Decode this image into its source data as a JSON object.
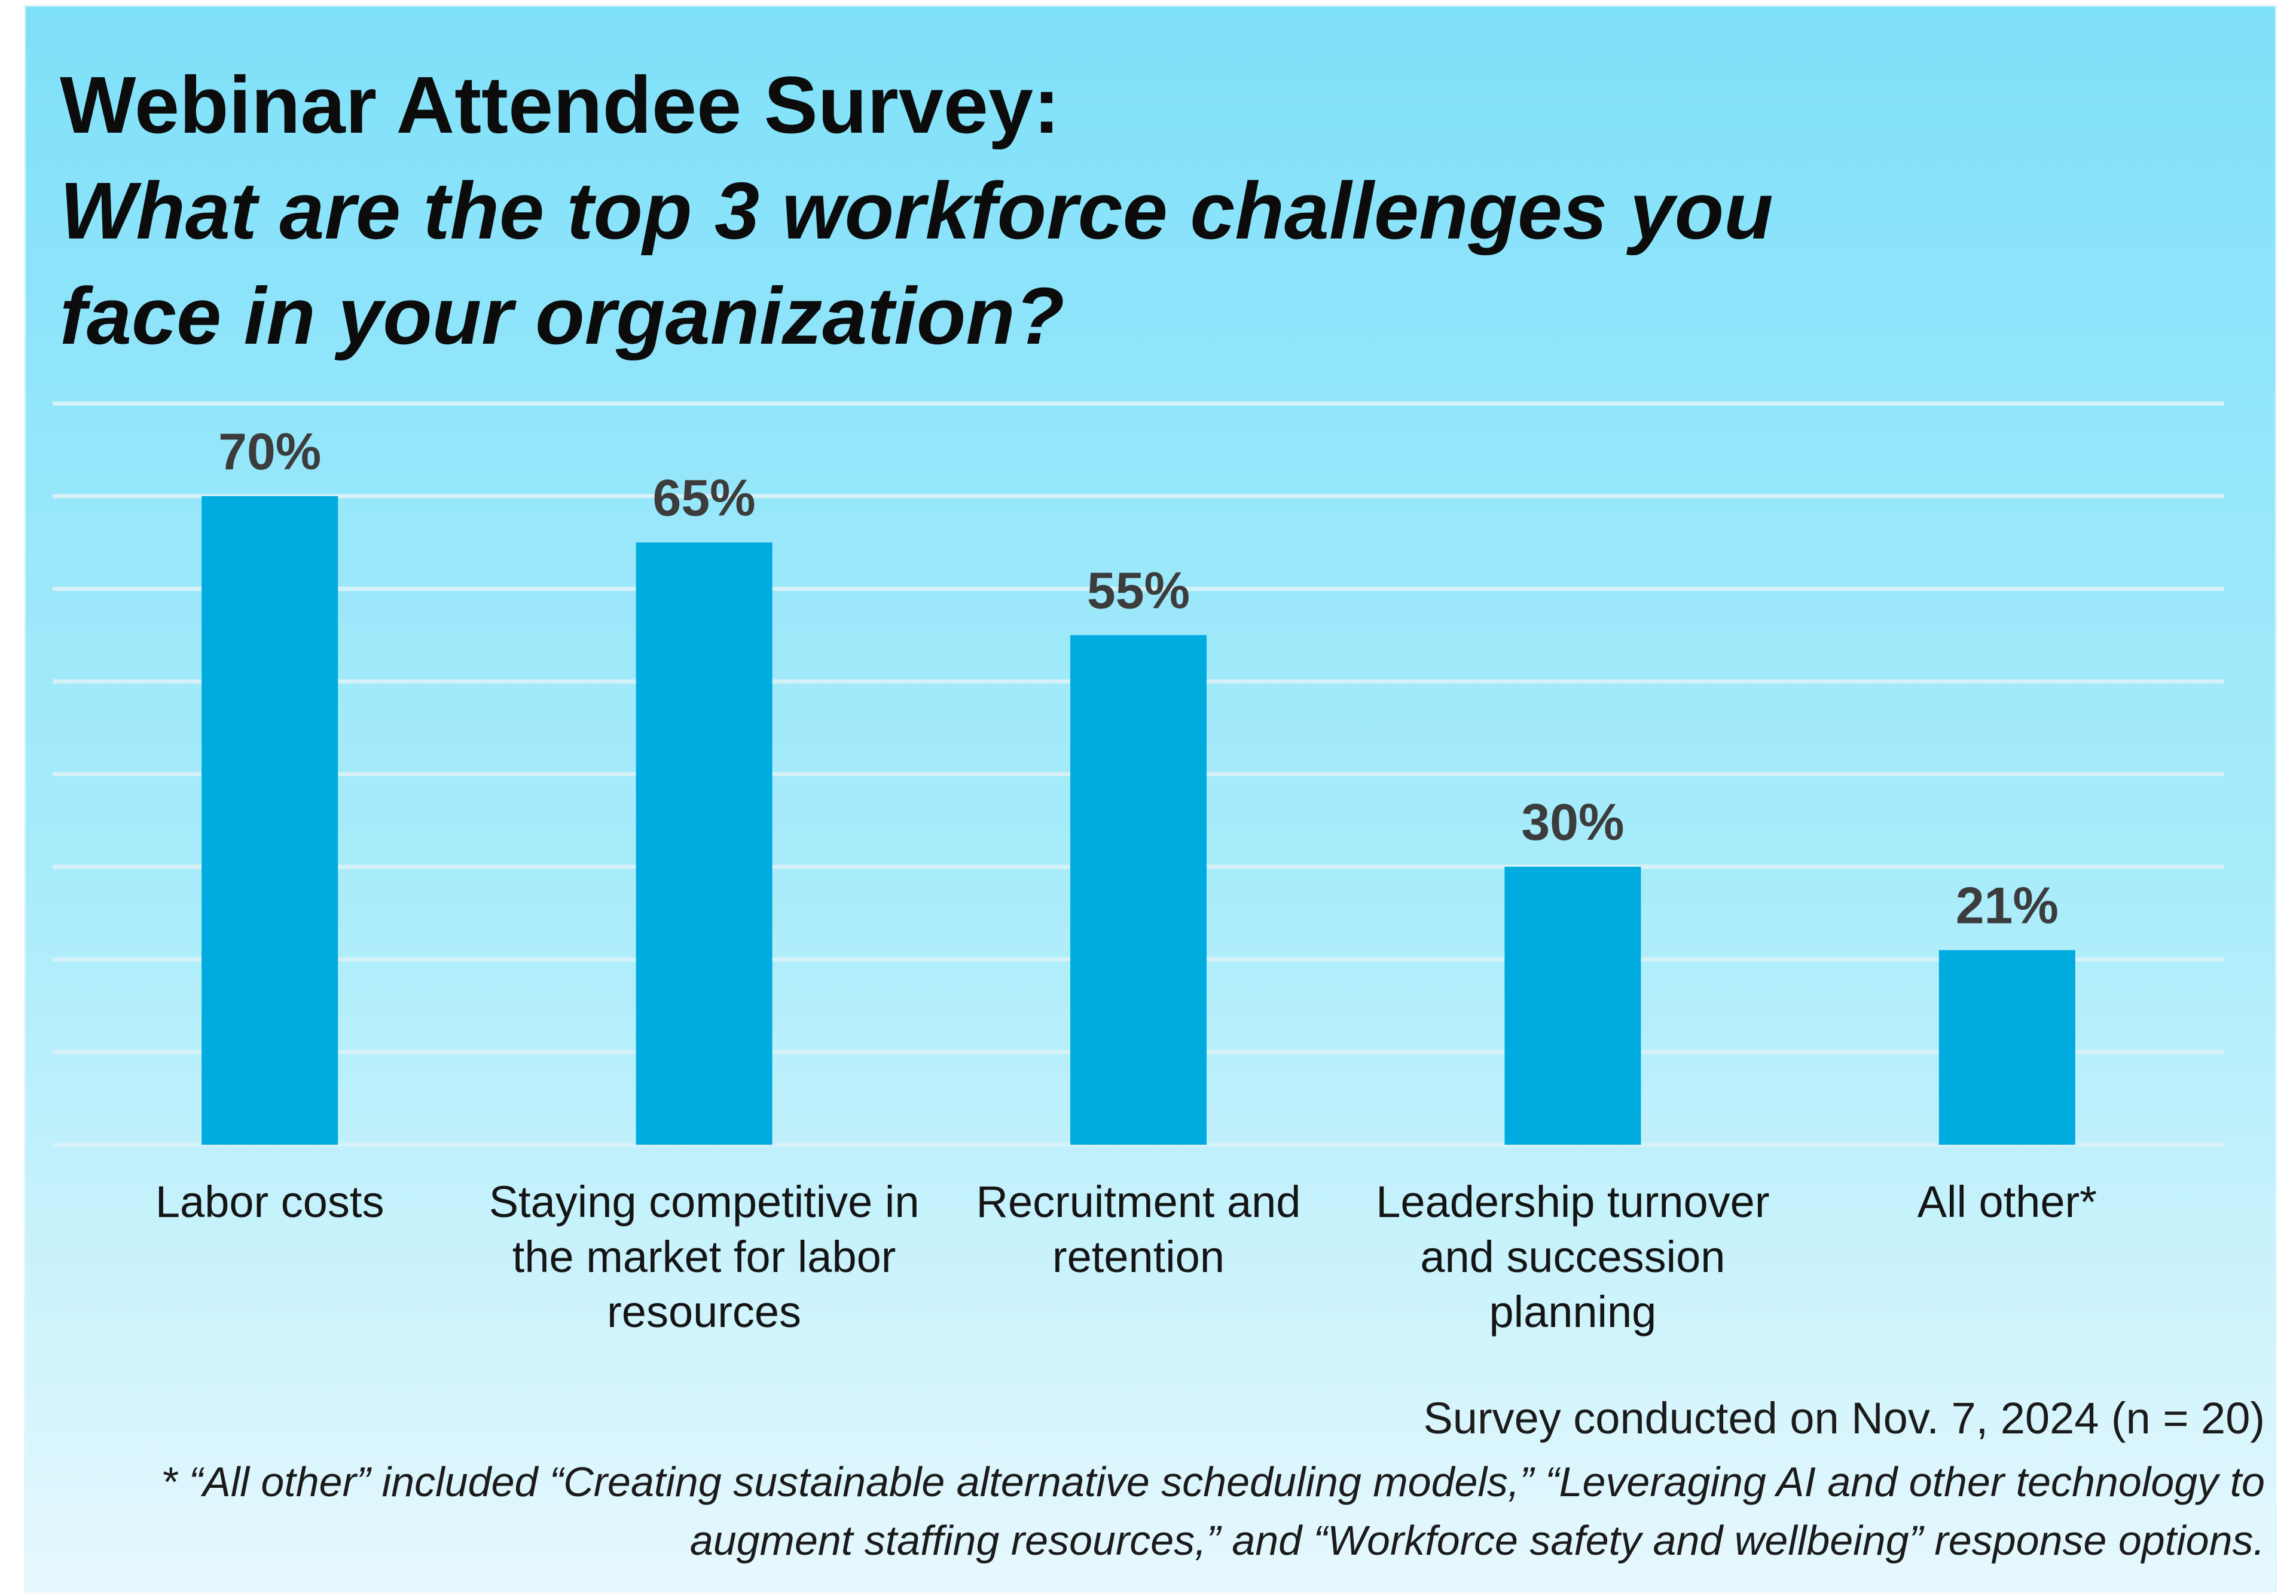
{
  "title": "Webinar Attendee Survey:",
  "subtitle": "What are the top 3 workforce challenges you face in your organization?",
  "chart_data": {
    "type": "bar",
    "title": "Webinar Attendee Survey: What are the top 3 workforce challenges you face in your organization?",
    "categories": [
      "Labor costs",
      "Staying competitive in the market for labor resources",
      "Recruitment and retention",
      "Leadership turnover and succession planning",
      "All other*"
    ],
    "values": [
      70,
      65,
      55,
      30,
      21
    ],
    "value_labels": [
      "70%",
      "65%",
      "55%",
      "30%",
      "21%"
    ],
    "xlabel": "",
    "ylabel": "",
    "ylim": [
      0,
      80
    ],
    "grid_step": 10,
    "grid": true,
    "bar_color": "#00abdf"
  },
  "footnotes": {
    "survey_date": "Survey conducted on Nov. 7, 2024 (n = 20)",
    "all_other": "* “All other” included “Creating sustainable alternative scheduling models,” “Leveraging AI and other technology to augment staffing resources,” and “Workforce safety and wellbeing” response options."
  },
  "colors": {
    "bar": "#00abdf",
    "background_top": "#7fe0f9",
    "background_bottom": "#e6f8fd"
  }
}
